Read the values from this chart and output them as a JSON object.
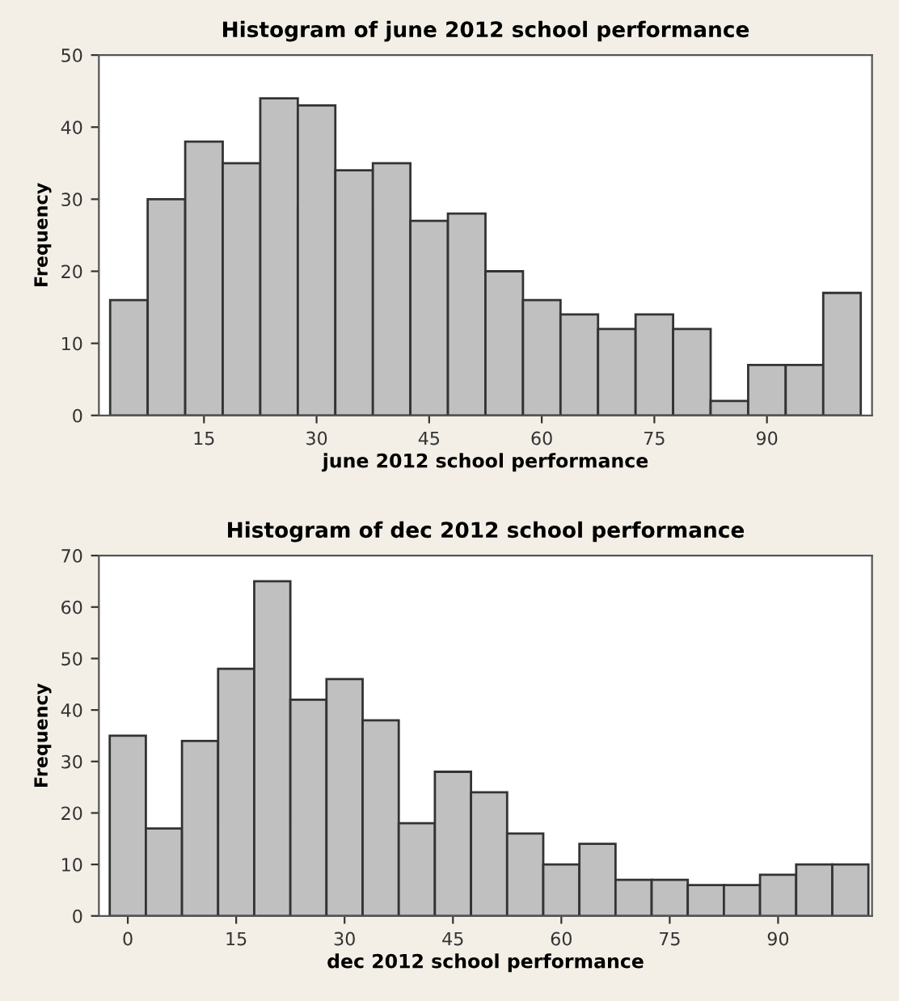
{
  "chart_data": [
    {
      "type": "histogram",
      "title": "Histogram of june 2012 school performance",
      "xlabel": "june 2012 school performance",
      "ylabel": "Frequency",
      "color": "#c0c0c0",
      "bins": [
        2.5,
        7.5,
        12.5,
        17.5,
        22.5,
        27.5,
        32.5,
        37.5,
        42.5,
        47.5,
        52.5,
        57.5,
        62.5,
        67.5,
        72.5,
        77.5,
        82.5,
        87.5,
        92.5,
        97.5,
        102.5
      ],
      "values": [
        16,
        30,
        38,
        35,
        44,
        43,
        34,
        35,
        27,
        28,
        20,
        16,
        14,
        12,
        14,
        12,
        2,
        7,
        7,
        17
      ],
      "xlim": [
        1,
        104
      ],
      "xticks": [
        15,
        30,
        45,
        60,
        75,
        90
      ],
      "ylim": [
        0,
        50
      ],
      "yticks": [
        0,
        10,
        20,
        30,
        40,
        50
      ],
      "grid": false
    },
    {
      "type": "histogram",
      "title": "Histogram of dec 2012 school performance",
      "xlabel": "dec 2012 school performance",
      "ylabel": "Frequency",
      "color": "#c0c0c0",
      "bins": [
        -2.5,
        2.5,
        7.5,
        12.5,
        17.5,
        22.5,
        27.5,
        32.5,
        37.5,
        42.5,
        47.5,
        52.5,
        57.5,
        62.5,
        67.5,
        72.5,
        77.5,
        82.5,
        87.5,
        92.5,
        97.5,
        102.5
      ],
      "values": [
        35,
        17,
        34,
        48,
        65,
        42,
        46,
        38,
        18,
        28,
        24,
        16,
        10,
        14,
        7,
        7,
        6,
        6,
        8,
        10,
        10
      ],
      "xlim": [
        -4,
        103
      ],
      "xticks": [
        0,
        15,
        30,
        45,
        60,
        75,
        90
      ],
      "ylim": [
        0,
        70
      ],
      "yticks": [
        0,
        10,
        20,
        30,
        40,
        50,
        60,
        70
      ],
      "grid": false
    }
  ]
}
